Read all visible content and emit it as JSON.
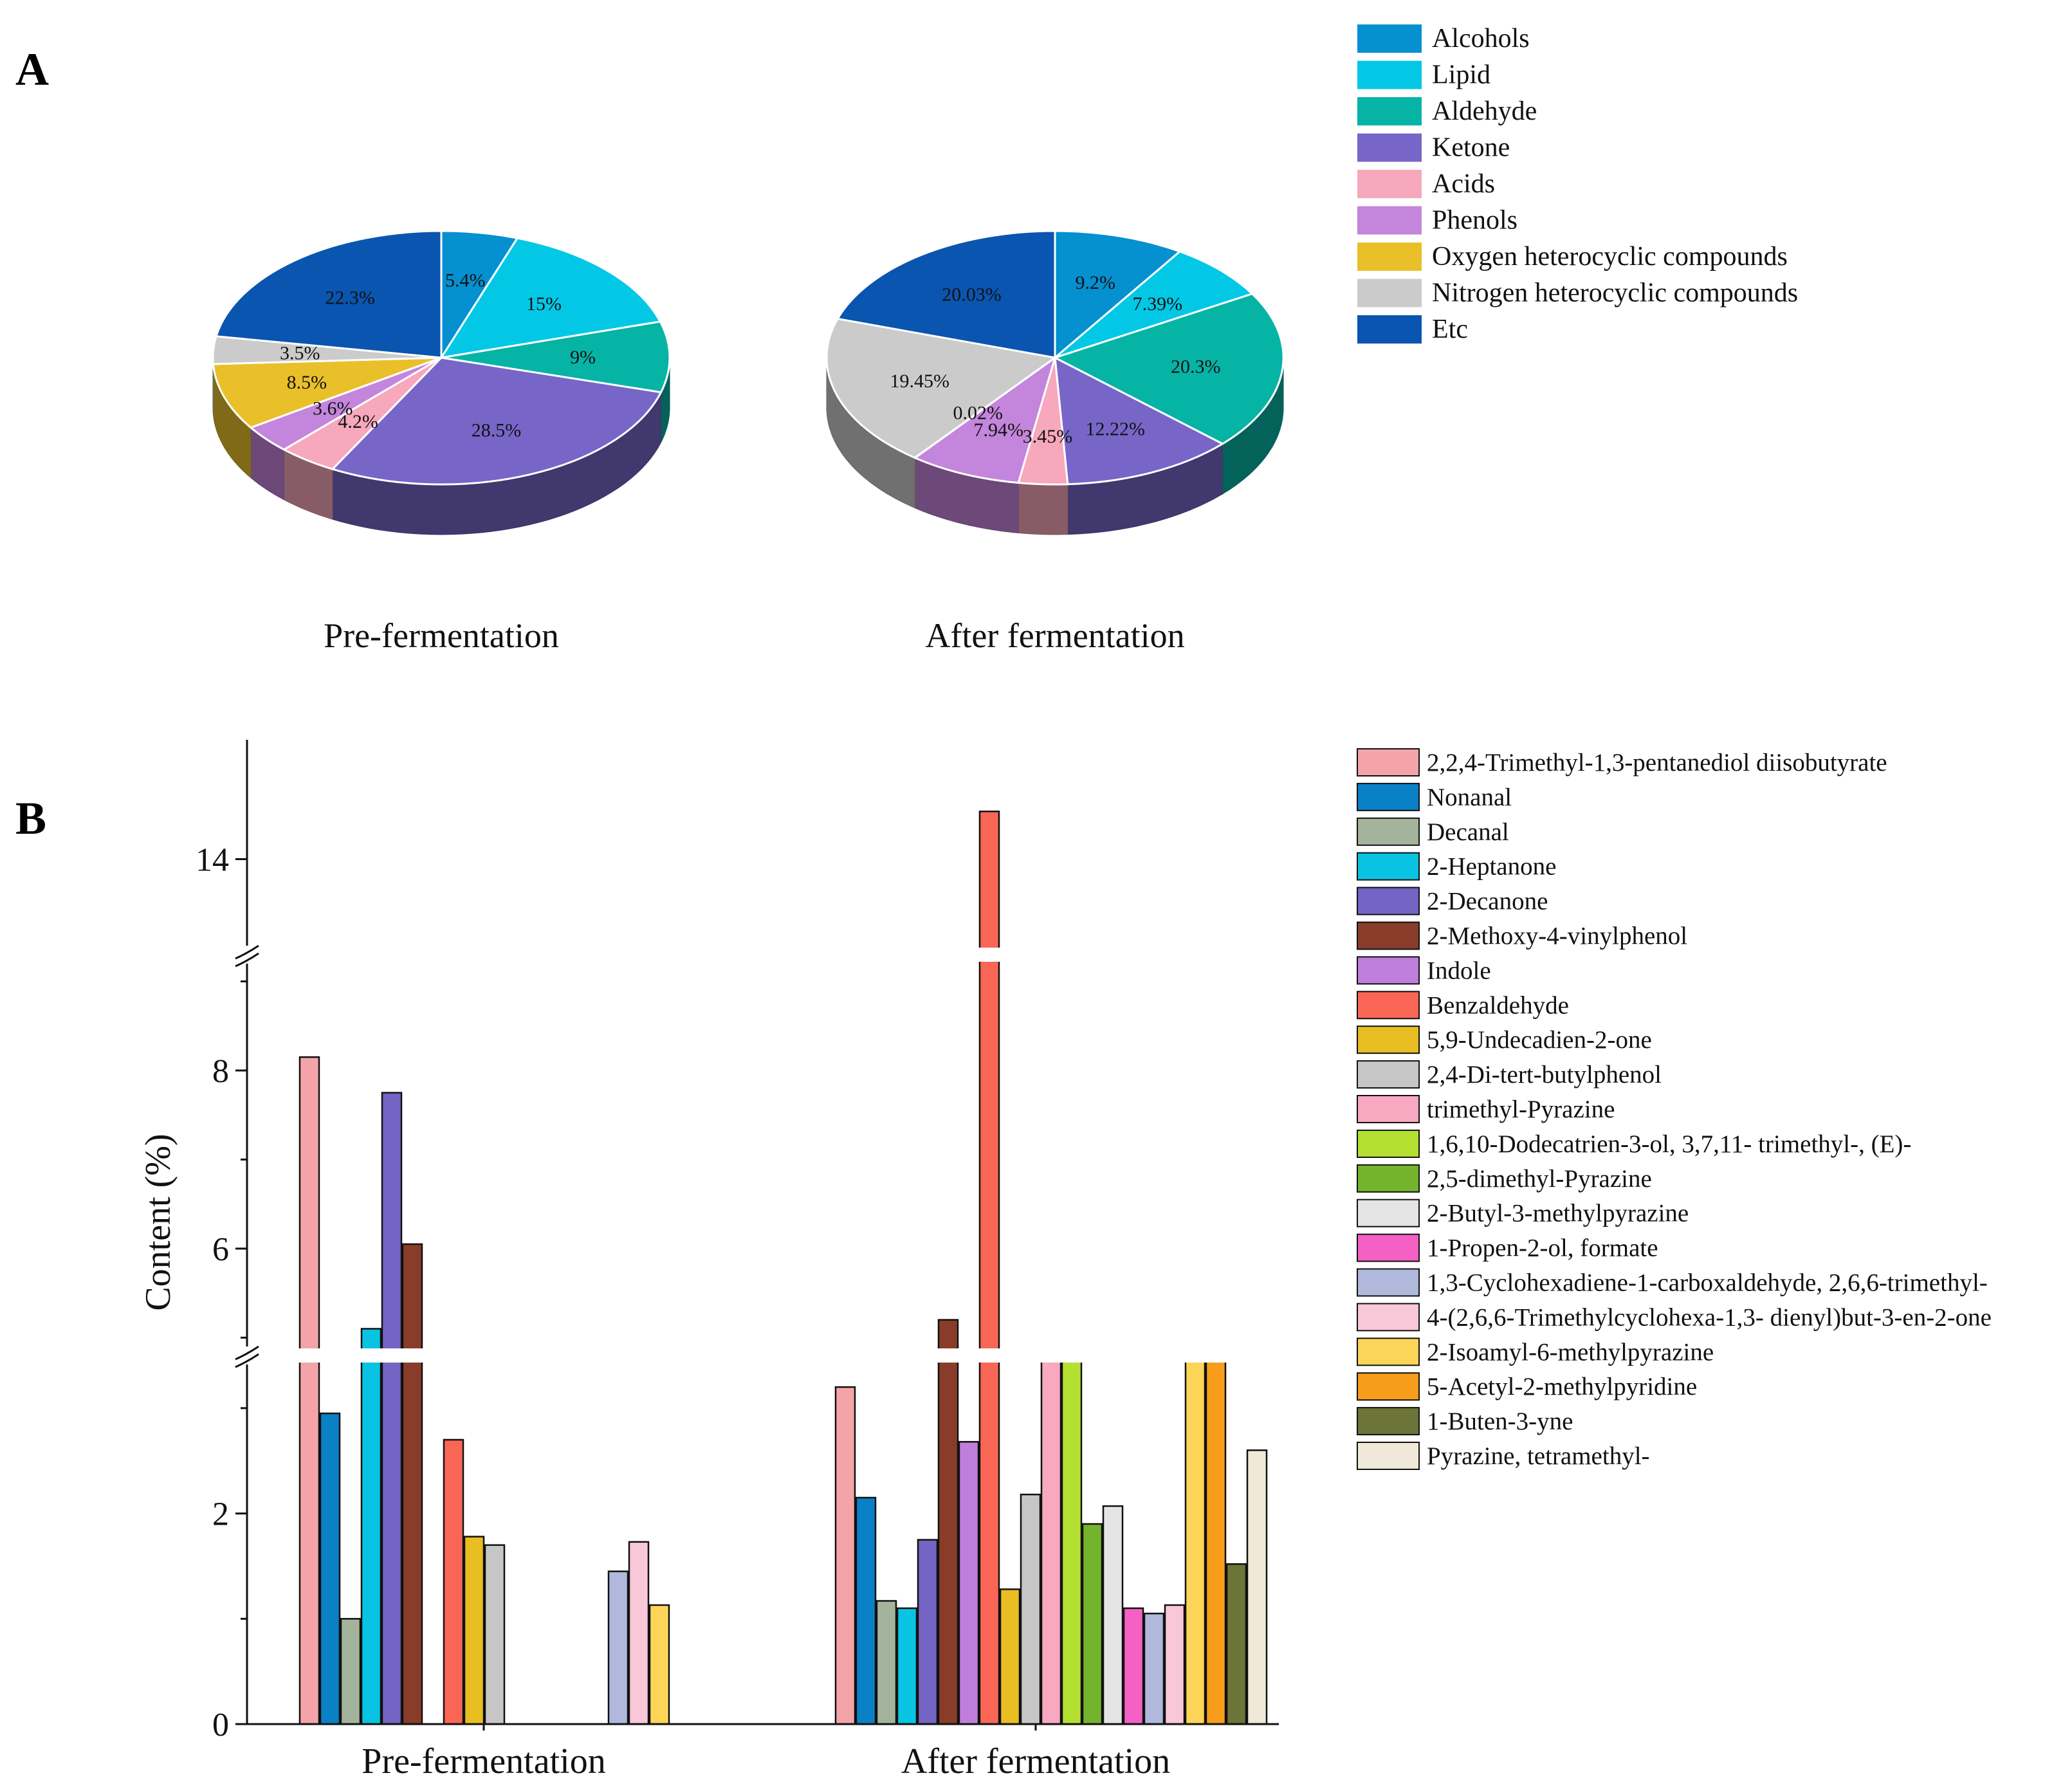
{
  "panels": {
    "a": "A",
    "b": "B"
  },
  "chart_data": [
    {
      "type": "pie",
      "panel": "A",
      "legend": [
        "Alcohols",
        "Lipid",
        "Aldehyde",
        "Ketone",
        "Acids",
        "Phenols",
        "Oxygen heterocyclic compounds",
        "Nitrogen heterocyclic compounds",
        "Etc"
      ],
      "colors": [
        "#0590d0",
        "#02c8e6",
        "#06b4a6",
        "#7766c8",
        "#f7a8bc",
        "#c485dc",
        "#e9c02a",
        "#cbcbcb",
        "#0a55b0"
      ],
      "pies": [
        {
          "name": "Pre-fermentation",
          "title": "Pre-fermentation",
          "values": [
            5.4,
            15,
            9,
            28.5,
            4.2,
            3.6,
            8.5,
            3.5,
            22.3
          ],
          "labels": [
            "5.4%",
            "15%",
            "9%",
            "28.5%",
            "4.2%",
            "3.6%",
            "8.5%",
            "3.5%",
            "22.3%"
          ]
        },
        {
          "name": "After fermentation",
          "title": "After fermentation",
          "values": [
            9.2,
            7.39,
            20.3,
            12.22,
            3.45,
            7.94,
            0.02,
            19.45,
            20.03
          ],
          "labels": [
            "9.2%",
            "7.39%",
            "20.3%",
            "12.22%",
            "3.45%",
            "7.94%",
            "0.02%",
            "19.45%",
            "20.03%"
          ]
        }
      ]
    },
    {
      "type": "bar",
      "panel": "B",
      "ylabel": "Content (%)",
      "xlabel": "",
      "categories": [
        "Pre-fermentation",
        "After fermentation"
      ],
      "y_ticks": [
        "0",
        "2",
        "6",
        "8",
        "14"
      ],
      "y_segments": [
        [
          0,
          3.5
        ],
        [
          4.8,
          9.3
        ],
        [
          13.2,
          15.0
        ]
      ],
      "series": [
        {
          "name": "2,2,4-Trimethyl-1,3-pentanediol diisobutyrate",
          "color": "#f4a4a8",
          "values": [
            8.15,
            3.2
          ]
        },
        {
          "name": "Nonanal",
          "color": "#0a80c6",
          "values": [
            2.95,
            2.15
          ]
        },
        {
          "name": "Decanal",
          "color": "#a4b49c",
          "values": [
            1.0,
            1.17
          ]
        },
        {
          "name": "2-Heptanone",
          "color": "#08c4e2",
          "values": [
            5.1,
            1.1
          ]
        },
        {
          "name": "2-Decanone",
          "color": "#7464c4",
          "values": [
            7.75,
            1.75
          ]
        },
        {
          "name": "2-Methoxy-4-vinylphenol",
          "color": "#8a3c2a",
          "values": [
            6.05,
            5.2
          ]
        },
        {
          "name": "Indole",
          "color": "#c07edc",
          "values": [
            0,
            2.68
          ]
        },
        {
          "name": "Benzaldehyde",
          "color": "#fa6656",
          "values": [
            2.7,
            14.4
          ]
        },
        {
          "name": "5,9-Undecadien-2-one",
          "color": "#e8be22",
          "values": [
            1.78,
            1.28
          ]
        },
        {
          "name": "2,4-Di-tert-butylphenol",
          "color": "#c6c6c6",
          "values": [
            1.7,
            2.18
          ]
        },
        {
          "name": "trimethyl-Pyrazine",
          "color": "#f8a8c0",
          "values": [
            0,
            4.0
          ]
        },
        {
          "name": "1,6,10-Dodecatrien-3-ol, 3,7,11- trimethyl-, (E)-",
          "color": "#b4e032",
          "values": [
            0,
            4.0
          ]
        },
        {
          "name": "2,5-dimethyl-Pyrazine",
          "color": "#74b42c",
          "values": [
            0,
            1.9
          ]
        },
        {
          "name": "2-Butyl-3-methylpyrazine",
          "color": "#e4e4e4",
          "values": [
            0,
            2.07
          ]
        },
        {
          "name": "1-Propen-2-ol, formate",
          "color": "#f460c4",
          "values": [
            0,
            1.1
          ]
        },
        {
          "name": "1,3-Cyclohexadiene-1-carboxaldehyde, 2,6,6-trimethyl-",
          "color": "#b0b8dc",
          "values": [
            1.45,
            1.05
          ]
        },
        {
          "name": "4-(2,6,6-Trimethylcyclohexa-1,3- dienyl)but-3-en-2-one",
          "color": "#f8c8d8",
          "values": [
            1.73,
            1.13
          ]
        },
        {
          "name": "2-Isoamyl-6-methylpyrazine",
          "color": "#fcd458",
          "values": [
            1.13,
            4.0
          ]
        },
        {
          "name": "5-Acetyl-2-methylpyridine",
          "color": "#f89c1c",
          "values": [
            0,
            4.0
          ]
        },
        {
          "name": "1-Buten-3-yne",
          "color": "#6c7438",
          "values": [
            0,
            1.52
          ]
        },
        {
          "name": "Pyrazine, tetramethyl-",
          "color": "#f0e8d8",
          "values": [
            0,
            2.6
          ]
        }
      ]
    }
  ]
}
